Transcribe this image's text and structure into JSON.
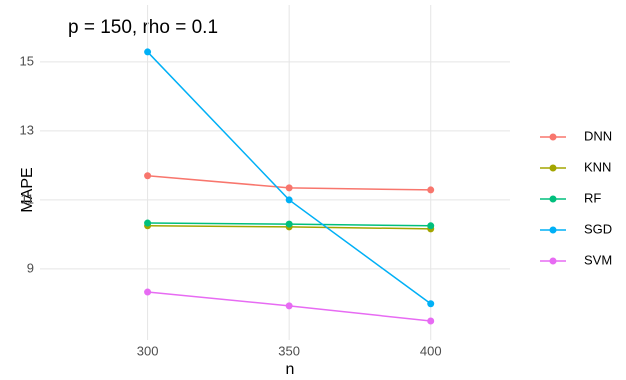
{
  "chart_data": {
    "type": "line",
    "title": "p = 150, rho = 0.1",
    "x_label": "n",
    "y_label": "MAPE",
    "x": [
      300,
      350,
      400
    ],
    "series": [
      {
        "name": "DNN",
        "color": "#F8766D",
        "values": [
          11.7,
          11.35,
          11.29
        ]
      },
      {
        "name": "KNN",
        "color": "#A3A500",
        "values": [
          10.25,
          10.22,
          10.16
        ]
      },
      {
        "name": "RF",
        "color": "#00BF7D",
        "values": [
          10.33,
          10.3,
          10.25
        ]
      },
      {
        "name": "SGD",
        "color": "#00B0F6",
        "values": [
          15.29,
          11.0,
          7.99
        ]
      },
      {
        "name": "SVM",
        "color": "#E76BF3",
        "values": [
          8.33,
          7.93,
          7.49
        ]
      }
    ],
    "xlim": [
      262,
      428
    ],
    "ylim": [
      6.94,
      16.65
    ],
    "xticks": [
      300,
      350,
      400
    ],
    "yticks": [
      9,
      11,
      13,
      15
    ],
    "grid": true
  }
}
